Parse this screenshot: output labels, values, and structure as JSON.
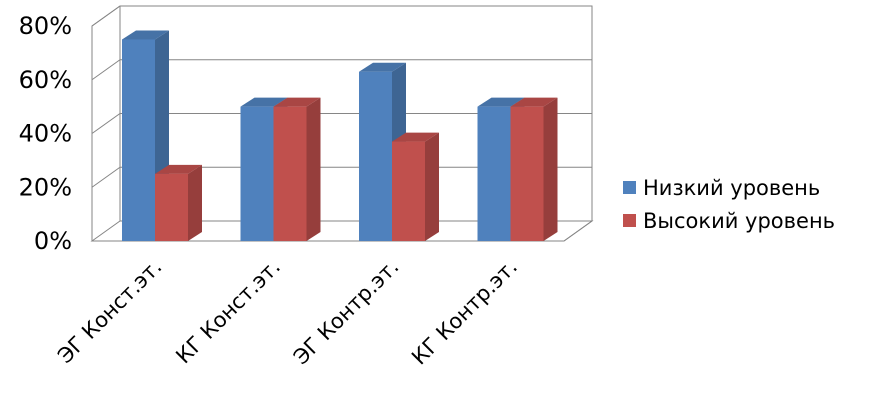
{
  "chart_data": {
    "type": "bar",
    "title": "",
    "xlabel": "",
    "ylabel": "",
    "ylim": [
      0,
      80
    ],
    "y_ticks": [
      "0%",
      "20%",
      "40%",
      "60%",
      "80%"
    ],
    "categories": [
      "ЭГ Конст.эт.",
      "КГ Конст.эт.",
      "ЭГ Контр.эт.",
      "КГ Контр.эт."
    ],
    "series": [
      {
        "name": "Низкий уровень",
        "values": [
          75,
          50,
          63,
          50
        ]
      },
      {
        "name": "Высокий уровень",
        "values": [
          25,
          50,
          37,
          50
        ]
      }
    ],
    "grid": true,
    "legend_position": "right",
    "colors": {
      "low": "#4F81BD",
      "high": "#C0504D",
      "wall": "#868686",
      "grid": "#868686"
    }
  }
}
